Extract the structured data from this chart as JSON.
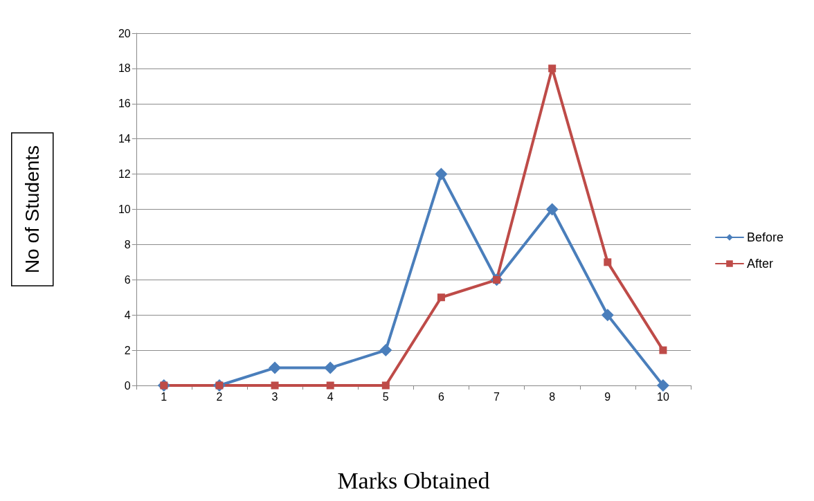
{
  "chart_data": {
    "type": "line",
    "xlabel": "Marks Obtained",
    "ylabel": "No of Students",
    "categories": [
      "1",
      "2",
      "3",
      "4",
      "5",
      "6",
      "7",
      "8",
      "9",
      "10"
    ],
    "series": [
      {
        "name": "Before",
        "color": "#4a7ebb",
        "marker": "diamond",
        "values": [
          0,
          0,
          1,
          1,
          2,
          12,
          6,
          10,
          4,
          0
        ]
      },
      {
        "name": "After",
        "color": "#be4b48",
        "marker": "square",
        "values": [
          0,
          0,
          0,
          0,
          0,
          5,
          6,
          18,
          7,
          2
        ]
      }
    ],
    "ylim": [
      0,
      20
    ],
    "yticks": [
      0,
      2,
      4,
      6,
      8,
      10,
      12,
      14,
      16,
      18,
      20
    ],
    "grid": "y",
    "legend": "right",
    "line_style": "solid"
  }
}
